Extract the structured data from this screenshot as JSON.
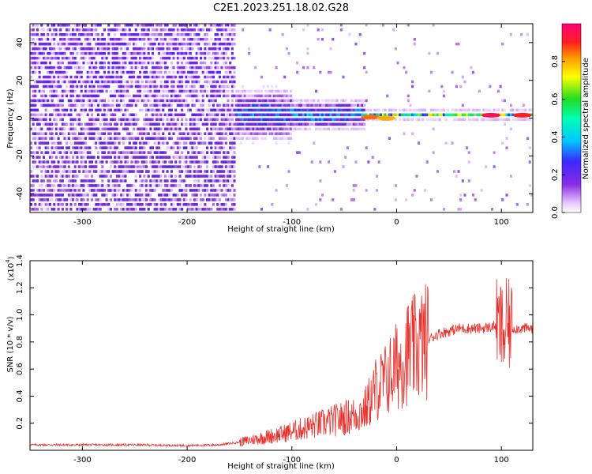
{
  "figure_title": "C2E1.2023.251.18.02.G28",
  "colors": {
    "snr_line": "#e8302c",
    "axes": "#000000",
    "background": "#ffffff"
  },
  "chart_data": [
    {
      "type": "heatmap",
      "title": "",
      "xlabel": "Height of straight line (km)",
      "ylabel": "Frequency (Hz)",
      "xlim": [
        -350,
        130
      ],
      "ylim": [
        -50,
        50
      ],
      "x_ticks": [
        -300,
        -200,
        -100,
        0,
        100
      ],
      "y_ticks": [
        -40,
        -20,
        0,
        20,
        40
      ],
      "colorbar": {
        "label": "Normalized spectral amplitude",
        "range": [
          0.0,
          1.0
        ],
        "ticks": [
          "0.0",
          "0.2",
          "0.4",
          "0.6",
          "0.8"
        ],
        "colormap": "rainbow (white-violet-blue-cyan-green-yellow-red-magenta)"
      },
      "regions": [
        {
          "x_range": [
            -350,
            -155
          ],
          "freq_spread_hz": 50,
          "amplitude": 0.15
        },
        {
          "x_range": [
            -155,
            -100
          ],
          "freq_spread_hz": 12,
          "amplitude": 0.3
        },
        {
          "x_range": [
            -100,
            -30
          ],
          "freq_spread_hz": 7,
          "amplitude": 0.35
        },
        {
          "x_range": [
            -30,
            130
          ],
          "freq_spread_hz": 2,
          "amplitude": 0.6
        }
      ],
      "peaks": [
        {
          "x": 90,
          "freq": 1.5,
          "amplitude": 0.95
        },
        {
          "x": 120,
          "freq": 1.5,
          "amplitude": 0.9
        },
        {
          "x": -25,
          "freq": 0.5,
          "amplitude": 0.85
        },
        {
          "x": -10,
          "freq": 0.0,
          "amplitude": 0.8
        }
      ]
    },
    {
      "type": "line",
      "title": "",
      "xlabel": "Height of straight line (km)",
      "ylabel": "SNR (10 * v/v)",
      "y_multiplier": "(x10",
      "y_multiplier_exp": "4",
      "xlim": [
        -350,
        130
      ],
      "ylim": [
        0,
        1.4
      ],
      "x_ticks": [
        -300,
        -200,
        -100,
        0,
        100
      ],
      "y_ticks": [
        0.2,
        0.4,
        0.6,
        0.8,
        1.0,
        1.2,
        1.4
      ],
      "series": [
        {
          "x": [
            -350,
            -300,
            -250,
            -200,
            -170,
            -150,
            -130,
            -110,
            -100,
            -80,
            -60,
            -40,
            -30,
            -20,
            -10,
            0,
            10,
            20,
            30,
            40,
            60,
            80,
            90,
            95,
            100,
            103,
            105,
            110,
            120,
            130
          ],
          "y": [
            0.04,
            0.04,
            0.04,
            0.035,
            0.04,
            0.06,
            0.09,
            0.12,
            0.14,
            0.18,
            0.22,
            0.26,
            0.3,
            0.45,
            0.52,
            0.62,
            0.72,
            0.76,
            0.82,
            0.86,
            0.9,
            0.9,
            0.91,
            0.92,
            0.9,
            0.85,
            0.93,
            0.9,
            0.9,
            0.9
          ]
        }
      ]
    }
  ]
}
